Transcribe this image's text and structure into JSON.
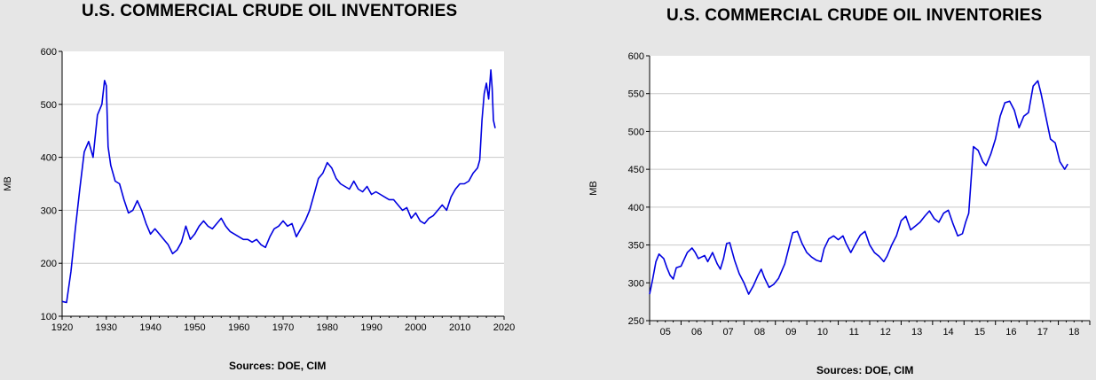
{
  "chart_data": [
    {
      "type": "line",
      "title": "U.S. COMMERCIAL CRUDE OIL INVENTORIES",
      "ylabel": "MB",
      "source": "Sources:  DOE, CIM",
      "xlim": [
        1920,
        2020
      ],
      "ylim": [
        100,
        600
      ],
      "xticks": [
        "1920",
        "1930",
        "1940",
        "1950",
        "1960",
        "1970",
        "1980",
        "1990",
        "2000",
        "2010",
        "2020"
      ],
      "yticks": [
        "100",
        "200",
        "300",
        "400",
        "500",
        "600"
      ],
      "grid": true,
      "color": "#0000e0",
      "series": [
        {
          "x": [
            1920,
            1921,
            1922,
            1923,
            1924,
            1925,
            1926,
            1927,
            1928,
            1929,
            1929.6,
            1930,
            1930.4,
            1931,
            1932,
            1933,
            1934,
            1935,
            1936,
            1937,
            1938,
            1939,
            1940,
            1941,
            1942,
            1943,
            1944,
            1945,
            1946,
            1947,
            1948,
            1949,
            1950,
            1951,
            1952,
            1953,
            1954,
            1955,
            1956,
            1957,
            1958,
            1959,
            1960,
            1961,
            1962,
            1963,
            1964,
            1965,
            1966,
            1967,
            1968,
            1969,
            1970,
            1971,
            1972,
            1973,
            1974,
            1975,
            1976,
            1977,
            1978,
            1979,
            1980,
            1981,
            1982,
            1983,
            1984,
            1985,
            1986,
            1987,
            1988,
            1989,
            1990,
            1991,
            1992,
            1993,
            1994,
            1995,
            1996,
            1997,
            1998,
            1999,
            2000,
            2001,
            2002,
            2003,
            2004,
            2005,
            2006,
            2007,
            2008,
            2009,
            2010,
            2011,
            2012,
            2013,
            2014,
            2014.5,
            2015,
            2015.5,
            2016,
            2016.5,
            2017,
            2017.3,
            2017.6,
            2018
          ],
          "y": [
            128,
            126,
            185,
            265,
            340,
            410,
            430,
            400,
            480,
            500,
            545,
            535,
            420,
            385,
            355,
            350,
            320,
            295,
            300,
            318,
            300,
            275,
            255,
            265,
            255,
            245,
            235,
            218,
            225,
            240,
            270,
            245,
            255,
            270,
            280,
            270,
            265,
            275,
            285,
            270,
            260,
            255,
            250,
            245,
            245,
            240,
            245,
            235,
            230,
            250,
            265,
            270,
            280,
            270,
            275,
            250,
            265,
            280,
            300,
            330,
            360,
            370,
            390,
            380,
            360,
            350,
            345,
            340,
            355,
            340,
            335,
            345,
            330,
            335,
            330,
            325,
            320,
            320,
            310,
            300,
            305,
            285,
            295,
            280,
            275,
            285,
            290,
            300,
            310,
            300,
            325,
            340,
            350,
            350,
            355,
            370,
            380,
            395,
            470,
            520,
            540,
            510,
            565,
            530,
            470,
            455
          ]
        }
      ]
    },
    {
      "type": "line",
      "title": "U.S. COMMERCIAL CRUDE OIL INVENTORIES",
      "ylabel": "MB",
      "source": "Sources:  DOE, CIM",
      "xlim": [
        2005,
        2019
      ],
      "ylim": [
        250,
        600
      ],
      "xticks": [
        "05",
        "06",
        "07",
        "08",
        "09",
        "10",
        "11",
        "12",
        "13",
        "14",
        "15",
        "16",
        "17",
        "18"
      ],
      "yticks": [
        "250",
        "300",
        "350",
        "400",
        "450",
        "500",
        "550",
        "600"
      ],
      "grid": true,
      "color": "#0000e0",
      "series": [
        {
          "x": [
            2005.0,
            2005.1,
            2005.2,
            2005.3,
            2005.45,
            2005.55,
            2005.65,
            2005.75,
            2005.85,
            2006.0,
            2006.2,
            2006.35,
            2006.45,
            2006.55,
            2006.65,
            2006.75,
            2006.85,
            2007.0,
            2007.15,
            2007.25,
            2007.35,
            2007.45,
            2007.55,
            2007.7,
            2007.85,
            2008.0,
            2008.15,
            2008.3,
            2008.45,
            2008.55,
            2008.65,
            2008.8,
            2008.95,
            2009.1,
            2009.3,
            2009.45,
            2009.55,
            2009.7,
            2009.85,
            2010.0,
            2010.15,
            2010.3,
            2010.45,
            2010.55,
            2010.7,
            2010.85,
            2011.0,
            2011.15,
            2011.25,
            2011.4,
            2011.55,
            2011.7,
            2011.85,
            2012.0,
            2012.15,
            2012.3,
            2012.45,
            2012.55,
            2012.7,
            2012.85,
            2013.0,
            2013.15,
            2013.3,
            2013.45,
            2013.6,
            2013.75,
            2013.9,
            2014.05,
            2014.2,
            2014.35,
            2014.5,
            2014.65,
            2014.8,
            2014.95,
            2015.05,
            2015.15,
            2015.3,
            2015.45,
            2015.6,
            2015.7,
            2015.85,
            2016.0,
            2016.15,
            2016.3,
            2016.45,
            2016.6,
            2016.75,
            2016.9,
            2017.05,
            2017.2,
            2017.35,
            2017.45,
            2017.6,
            2017.75,
            2017.9,
            2018.05,
            2018.2,
            2018.3
          ],
          "y": [
            285,
            305,
            328,
            338,
            332,
            320,
            310,
            305,
            320,
            322,
            340,
            346,
            340,
            332,
            334,
            336,
            328,
            340,
            325,
            318,
            332,
            352,
            353,
            330,
            312,
            300,
            285,
            296,
            310,
            318,
            307,
            294,
            298,
            306,
            325,
            350,
            366,
            368,
            352,
            340,
            334,
            330,
            328,
            345,
            358,
            362,
            357,
            362,
            352,
            340,
            352,
            363,
            368,
            350,
            340,
            335,
            328,
            335,
            350,
            362,
            382,
            388,
            370,
            375,
            380,
            388,
            395,
            385,
            380,
            392,
            396,
            378,
            362,
            365,
            380,
            392,
            480,
            475,
            460,
            455,
            470,
            490,
            520,
            538,
            540,
            528,
            505,
            520,
            525,
            560,
            567,
            550,
            520,
            490,
            485,
            460,
            450,
            457
          ]
        }
      ]
    }
  ]
}
